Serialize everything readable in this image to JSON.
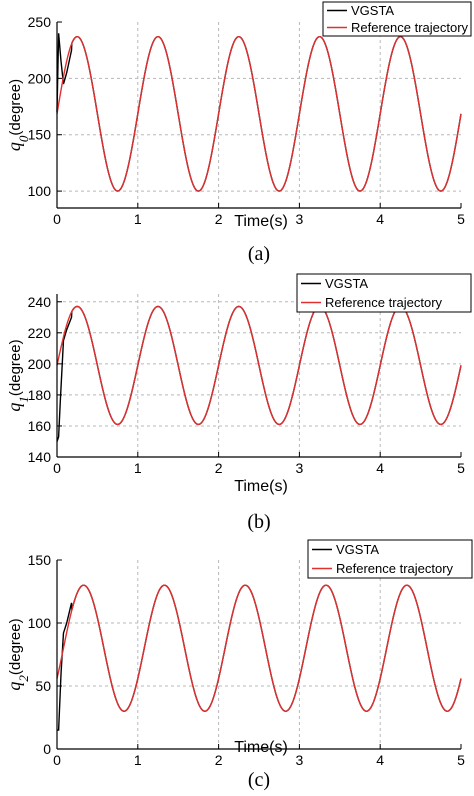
{
  "chart_data": [
    {
      "type": "line",
      "panel_label": "(a)",
      "xlabel": "Time(s)",
      "ylabel_symbol": "q",
      "ylabel_sub": "0",
      "ylabel_unit": "(degree)",
      "xlim": [
        0,
        5
      ],
      "ylim": [
        85,
        250
      ],
      "x_ticks": [
        0,
        1,
        2,
        3,
        4,
        5
      ],
      "y_ticks": [
        100,
        150,
        200,
        250
      ],
      "grid": "dashed vertical and horizontal",
      "legend_position": "top-right",
      "series": [
        {
          "name": "VGSTA",
          "color": "#000000",
          "x": [
            0,
            0.02,
            0.05,
            0.08,
            0.12,
            0.18,
            0.26,
            0.5,
            0.76,
            1.0,
            1.26,
            1.5,
            1.76,
            2.0,
            2.26,
            2.5,
            2.76,
            3.0,
            3.26,
            3.5,
            3.76,
            4.0,
            4.26,
            4.5,
            4.76,
            5.0
          ],
          "values": [
            170,
            240,
            215,
            195,
            205,
            225,
            237,
            168,
            100,
            168,
            237,
            168,
            100,
            168,
            237,
            168,
            100,
            168,
            237,
            168,
            100,
            168,
            237,
            168,
            100,
            168
          ]
        },
        {
          "name": "Reference trajectory",
          "color": "#e03030",
          "function": "168.5 + 68.5*sin(2*pi*t)",
          "center": 168.5,
          "amplitude": 68.5,
          "period": 1,
          "phase": 0
        }
      ]
    },
    {
      "type": "line",
      "panel_label": "(b)",
      "xlabel": "Time(s)",
      "ylabel_symbol": "q",
      "ylabel_sub": "1",
      "ylabel_unit": "(degree)",
      "xlim": [
        0,
        5
      ],
      "ylim": [
        140,
        245
      ],
      "x_ticks": [
        0,
        1,
        2,
        3,
        4,
        5
      ],
      "y_ticks": [
        140,
        160,
        180,
        200,
        220,
        240
      ],
      "grid": "dashed vertical and horizontal",
      "legend_position": "top-right",
      "series": [
        {
          "name": "VGSTA",
          "color": "#000000",
          "x": [
            0,
            0.02,
            0.04,
            0.08,
            0.12,
            0.18,
            0.26,
            0.5,
            0.76,
            1.0,
            1.26,
            1.5,
            1.76,
            2.0,
            2.26,
            2.5,
            2.76,
            3.0,
            3.26,
            3.5,
            3.76,
            4.0,
            4.26,
            4.5,
            4.76,
            5.0
          ],
          "values": [
            150,
            153,
            175,
            215,
            222,
            230,
            237,
            199,
            161,
            199,
            237,
            199,
            161,
            199,
            237,
            199,
            161,
            199,
            237,
            199,
            161,
            199,
            237,
            199,
            161,
            199
          ]
        },
        {
          "name": "Reference trajectory",
          "color": "#e03030",
          "function": "199 + 38*sin(2*pi*t)",
          "center": 199,
          "amplitude": 38,
          "period": 1,
          "phase": 0
        }
      ]
    },
    {
      "type": "line",
      "panel_label": "(c)",
      "xlabel": "Time(s)",
      "ylabel_symbol": "q",
      "ylabel_sub": "2",
      "ylabel_unit": "(degree)",
      "xlim": [
        0,
        5
      ],
      "ylim": [
        0,
        150
      ],
      "x_ticks": [
        0,
        1,
        2,
        3,
        4,
        5
      ],
      "y_ticks": [
        0,
        50,
        100,
        150
      ],
      "grid": "dashed vertical and horizontal",
      "legend_position": "top-right",
      "series": [
        {
          "name": "VGSTA",
          "color": "#000000",
          "x": [
            0,
            0.02,
            0.05,
            0.08,
            0.12,
            0.18,
            0.33,
            0.58,
            0.83,
            1.08,
            1.33,
            1.58,
            1.83,
            2.08,
            2.33,
            2.58,
            2.83,
            3.08,
            3.33,
            3.58,
            3.83,
            4.08,
            4.33,
            4.58,
            4.83,
            5.0
          ],
          "values": [
            15,
            15,
            60,
            92,
            100,
            116,
            130,
            80,
            30,
            80,
            130,
            80,
            30,
            80,
            130,
            80,
            30,
            80,
            130,
            80,
            30,
            80,
            130,
            80,
            30,
            60
          ]
        },
        {
          "name": "Reference trajectory",
          "color": "#e03030",
          "function": "80 + 50*sin(2*pi*(t-0.08))",
          "center": 80,
          "amplitude": 50,
          "period": 1,
          "phase": -0.08
        }
      ]
    }
  ]
}
